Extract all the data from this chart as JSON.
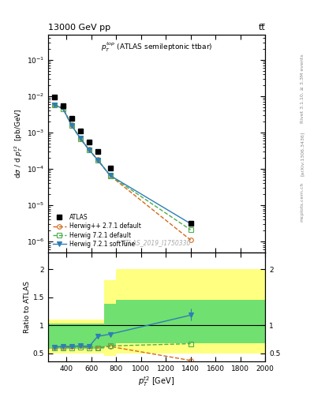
{
  "title_top": "13000 GeV pp",
  "title_right": "tt̅",
  "inner_title": "$p_T^{top}$ (ATLAS semileptonic ttbar)",
  "watermark": "ATLAS_2019_I1750330",
  "right_label1": "Rivet 3.1.10, ≥ 3.3M events",
  "right_label2": "[arXiv:1306.3436]",
  "right_label3": "mcplots.cern.ch",
  "atlas_x": [
    300,
    370,
    440,
    510,
    580,
    650,
    750,
    1400
  ],
  "atlas_y": [
    0.0095,
    0.0055,
    0.0025,
    0.0011,
    0.00055,
    0.0003,
    0.000105,
    3.2e-06
  ],
  "atlas_yerr_lo": [
    0.0005,
    0.0003,
    0.00015,
    7e-05,
    3e-05,
    1.5e-05,
    5e-06,
    3e-07
  ],
  "atlas_yerr_hi": [
    0.0005,
    0.0003,
    0.00015,
    7e-05,
    3e-05,
    1.5e-05,
    5e-06,
    3e-07
  ],
  "herwig_pp_x": [
    300,
    370,
    440,
    510,
    580,
    650,
    750,
    1400
  ],
  "herwig_pp_y": [
    0.0058,
    0.0048,
    0.0016,
    0.0007,
    0.00034,
    0.00018,
    6.5e-05,
    1.1e-06
  ],
  "herwig_pp_color": "#d4691e",
  "herwig721_x": [
    300,
    370,
    440,
    510,
    580,
    650,
    750,
    1400
  ],
  "herwig721_y": [
    0.0056,
    0.0045,
    0.00155,
    0.00068,
    0.00033,
    0.000175,
    6.5e-05,
    2.1e-06
  ],
  "herwig721_color": "#4caf4c",
  "herwig_soft_x": [
    300,
    370,
    440,
    510,
    580,
    650,
    750,
    1400
  ],
  "herwig_soft_y": [
    0.0057,
    0.0046,
    0.00157,
    0.00069,
    0.000335,
    0.000177,
    6.6e-05,
    3.1e-06
  ],
  "herwig_soft_color": "#2e7eb5",
  "ratio_x": [
    300,
    370,
    440,
    510,
    580,
    650,
    750,
    1400
  ],
  "ratio_herwig_pp": [
    0.61,
    0.61,
    0.62,
    0.63,
    0.62,
    0.6,
    0.62,
    0.37
  ],
  "ratio_herwig721": [
    0.6,
    0.6,
    0.6,
    0.61,
    0.6,
    0.59,
    0.63,
    0.67
  ],
  "ratio_herwig_soft": [
    0.61,
    0.62,
    0.62,
    0.63,
    0.62,
    0.8,
    0.84,
    1.18
  ],
  "ratio_soft_yerr_lo": [
    0.02,
    0.02,
    0.02,
    0.02,
    0.02,
    0.04,
    0.04,
    0.1
  ],
  "ratio_soft_yerr_hi": [
    0.02,
    0.02,
    0.02,
    0.02,
    0.02,
    0.04,
    0.04,
    0.12
  ],
  "band_edges": [
    250,
    330,
    400,
    470,
    540,
    610,
    700,
    800,
    2000
  ],
  "yellow_lo": [
    0.5,
    0.5,
    0.5,
    0.5,
    0.5,
    0.5,
    0.45,
    0.5
  ],
  "yellow_hi": [
    1.1,
    1.1,
    1.1,
    1.1,
    1.1,
    1.1,
    1.8,
    2.0
  ],
  "green_lo": [
    0.58,
    0.58,
    0.58,
    0.58,
    0.58,
    0.58,
    0.62,
    0.68
  ],
  "green_hi": [
    1.03,
    1.03,
    1.03,
    1.03,
    1.03,
    1.03,
    1.38,
    1.45
  ],
  "ylabel_main": "d$\\sigma$ / d $p_T^{t2}$  [pb/GeV]",
  "ylabel_ratio": "Ratio to ATLAS",
  "xlabel": "$p_T^{t2}$ [GeV]",
  "xlim": [
    250,
    2000
  ],
  "ylim_main": [
    5e-07,
    0.5
  ],
  "ylim_ratio": [
    0.35,
    2.3
  ],
  "yellow_color": "#ffff80",
  "green_color": "#70e070"
}
